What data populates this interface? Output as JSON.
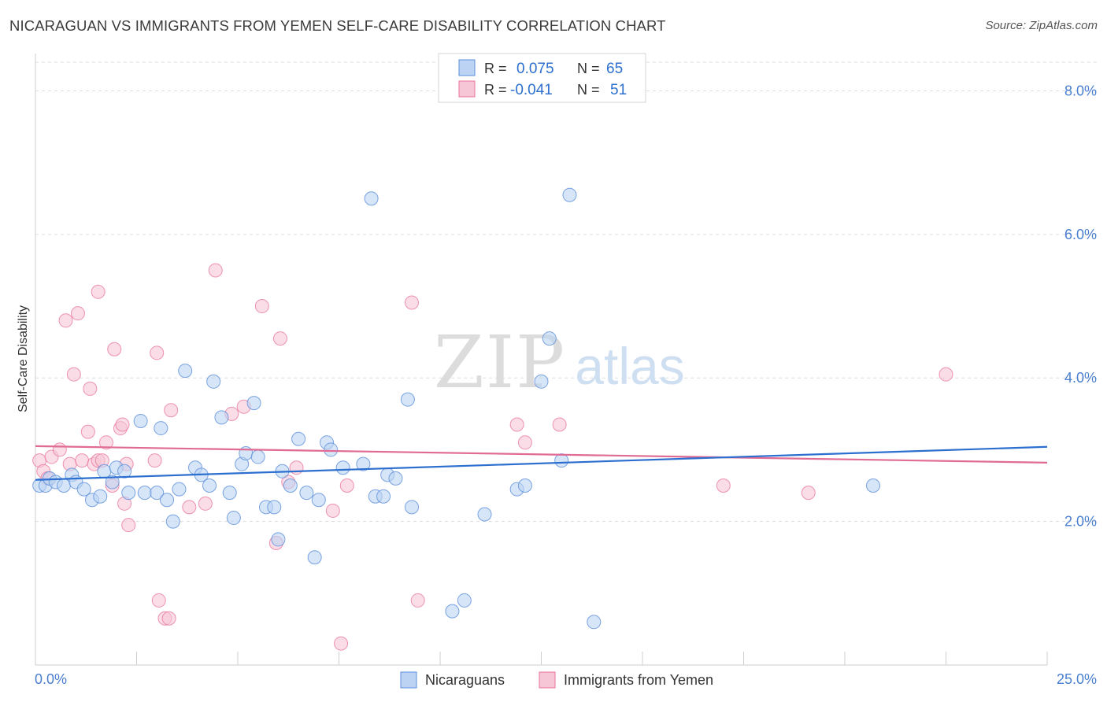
{
  "title": "NICARAGUAN VS IMMIGRANTS FROM YEMEN SELF-CARE DISABILITY CORRELATION CHART",
  "source": "Source: ZipAtlas.com",
  "colors": {
    "blue": "#5b8fd9",
    "blue_fill": "#bcd3f3",
    "pink": "#e8739a",
    "pink_fill": "#f7c6d6",
    "blue_line": "#2c6fcf",
    "pink_line": "#e06b94",
    "axis_text": "#4a7fd0"
  },
  "legend": {
    "rows": [
      {
        "r_label": "R =",
        "r_value": "0.075",
        "n_label": "N =",
        "n_value": "65"
      },
      {
        "r_label": "R =",
        "r_value": "-0.041",
        "n_label": "N =",
        "n_value": "51"
      }
    ]
  },
  "bottom_legend": {
    "series1": "Nicaraguans",
    "series2": "Immigrants from Yemen"
  },
  "watermark": {
    "zip": "ZIP",
    "atlas": "atlas"
  },
  "chart_data": {
    "type": "scatter",
    "title": "NICARAGUAN VS IMMIGRANTS FROM YEMEN SELF-CARE DISABILITY CORRELATION CHART",
    "xlabel": "",
    "ylabel": "Self-Care Disability",
    "xlim": [
      0,
      25
    ],
    "ylim": [
      0,
      8.4
    ],
    "x_tick_labels": [
      "0.0%",
      "25.0%"
    ],
    "y_ticks": [
      2,
      4,
      6,
      8
    ],
    "y_tick_labels": [
      "2.0%",
      "4.0%",
      "6.0%",
      "8.0%"
    ],
    "grid": true,
    "legend_position": "top-center",
    "series": [
      {
        "name": "Nicaraguans",
        "color": "#5b8fd9",
        "trend": {
          "x": [
            0,
            25
          ],
          "y": [
            2.58,
            3.04
          ]
        },
        "points": [
          [
            0.1,
            2.5
          ],
          [
            0.25,
            2.5
          ],
          [
            0.35,
            2.6
          ],
          [
            0.5,
            2.55
          ],
          [
            0.7,
            2.5
          ],
          [
            0.9,
            2.65
          ],
          [
            1.0,
            2.55
          ],
          [
            1.2,
            2.45
          ],
          [
            1.4,
            2.3
          ],
          [
            1.6,
            2.35
          ],
          [
            1.7,
            2.7
          ],
          [
            1.9,
            2.55
          ],
          [
            2.0,
            2.75
          ],
          [
            2.2,
            2.7
          ],
          [
            2.3,
            2.4
          ],
          [
            2.6,
            3.4
          ],
          [
            2.7,
            2.4
          ],
          [
            3.0,
            2.4
          ],
          [
            3.1,
            3.3
          ],
          [
            3.25,
            2.3
          ],
          [
            3.4,
            2.0
          ],
          [
            3.55,
            2.45
          ],
          [
            3.7,
            4.1
          ],
          [
            3.95,
            2.75
          ],
          [
            4.1,
            2.65
          ],
          [
            4.3,
            2.5
          ],
          [
            4.4,
            3.95
          ],
          [
            4.6,
            3.45
          ],
          [
            4.8,
            2.4
          ],
          [
            4.9,
            2.05
          ],
          [
            5.1,
            2.8
          ],
          [
            5.2,
            2.95
          ],
          [
            5.4,
            3.65
          ],
          [
            5.5,
            2.9
          ],
          [
            5.7,
            2.2
          ],
          [
            5.9,
            2.2
          ],
          [
            6.0,
            1.75
          ],
          [
            6.1,
            2.7
          ],
          [
            6.3,
            2.5
          ],
          [
            6.5,
            3.15
          ],
          [
            6.7,
            2.4
          ],
          [
            6.9,
            1.5
          ],
          [
            7.0,
            2.3
          ],
          [
            7.2,
            3.1
          ],
          [
            7.3,
            3.0
          ],
          [
            7.6,
            2.75
          ],
          [
            8.1,
            2.8
          ],
          [
            8.3,
            6.5
          ],
          [
            8.4,
            2.35
          ],
          [
            8.6,
            2.35
          ],
          [
            8.7,
            2.65
          ],
          [
            8.9,
            2.6
          ],
          [
            9.2,
            3.7
          ],
          [
            9.3,
            2.2
          ],
          [
            10.3,
            0.75
          ],
          [
            10.6,
            0.9
          ],
          [
            11.1,
            2.1
          ],
          [
            11.9,
            2.45
          ],
          [
            12.1,
            2.5
          ],
          [
            12.5,
            3.95
          ],
          [
            12.7,
            4.55
          ],
          [
            13.0,
            2.85
          ],
          [
            13.2,
            6.55
          ],
          [
            13.8,
            0.6
          ],
          [
            20.7,
            2.5
          ]
        ]
      },
      {
        "name": "Immigrants from Yemen",
        "color": "#e8739a",
        "trend": {
          "x": [
            0,
            25
          ],
          "y": [
            3.05,
            2.82
          ]
        },
        "points": [
          [
            0.1,
            2.85
          ],
          [
            0.2,
            2.7
          ],
          [
            0.3,
            2.6
          ],
          [
            0.4,
            2.9
          ],
          [
            0.6,
            3.0
          ],
          [
            0.75,
            4.8
          ],
          [
            0.85,
            2.8
          ],
          [
            0.95,
            4.05
          ],
          [
            1.05,
            4.9
          ],
          [
            1.15,
            2.85
          ],
          [
            1.3,
            3.25
          ],
          [
            1.35,
            3.85
          ],
          [
            1.45,
            2.8
          ],
          [
            1.55,
            2.85
          ],
          [
            1.55,
            5.2
          ],
          [
            1.65,
            2.85
          ],
          [
            1.75,
            3.1
          ],
          [
            1.9,
            2.5
          ],
          [
            1.95,
            4.4
          ],
          [
            2.1,
            3.3
          ],
          [
            2.15,
            3.35
          ],
          [
            2.2,
            2.25
          ],
          [
            2.3,
            1.95
          ],
          [
            2.95,
            2.85
          ],
          [
            3.0,
            4.35
          ],
          [
            3.05,
            0.9
          ],
          [
            3.2,
            0.65
          ],
          [
            3.3,
            0.65
          ],
          [
            3.35,
            3.55
          ],
          [
            3.8,
            2.2
          ],
          [
            4.45,
            5.5
          ],
          [
            4.85,
            3.5
          ],
          [
            5.15,
            3.6
          ],
          [
            5.6,
            5.0
          ],
          [
            5.95,
            1.7
          ],
          [
            6.05,
            4.55
          ],
          [
            6.25,
            2.55
          ],
          [
            6.45,
            2.75
          ],
          [
            7.35,
            2.15
          ],
          [
            7.55,
            0.3
          ],
          [
            7.7,
            2.5
          ],
          [
            9.3,
            5.05
          ],
          [
            9.45,
            0.9
          ],
          [
            11.9,
            3.35
          ],
          [
            12.1,
            3.1
          ],
          [
            12.95,
            3.35
          ],
          [
            17.0,
            2.5
          ],
          [
            19.1,
            2.4
          ],
          [
            22.5,
            4.05
          ],
          [
            2.25,
            2.8
          ],
          [
            4.2,
            2.25
          ]
        ]
      }
    ]
  }
}
